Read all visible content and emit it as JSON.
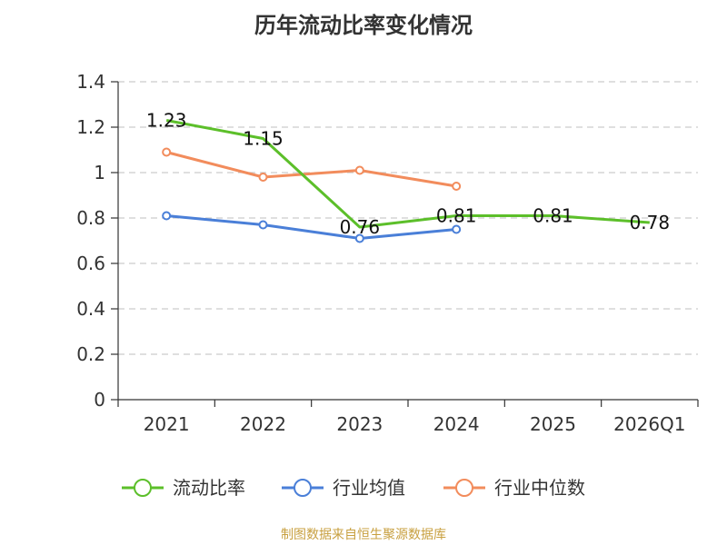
{
  "title": "历年流动比率变化情况",
  "source_note": "制图数据来自恒生聚源数据库",
  "chart_data": {
    "type": "line",
    "title": "历年流动比率变化情况",
    "categories": [
      "2021",
      "2022",
      "2023",
      "2024",
      "2025",
      "2026Q1"
    ],
    "ylim": [
      0,
      1.4
    ],
    "yticks": [
      0,
      0.2,
      0.4,
      0.6,
      0.8,
      1,
      1.2,
      1.4
    ],
    "grid": true,
    "legend_position": "bottom",
    "series": [
      {
        "name": "流动比率",
        "color": "#5cbf2a",
        "values": [
          1.23,
          1.15,
          0.76,
          0.81,
          0.81,
          0.78
        ],
        "labels": true,
        "markers": false
      },
      {
        "name": "行业均值",
        "color": "#4a7fd8",
        "values": [
          0.81,
          0.77,
          0.71,
          0.75,
          null,
          null
        ],
        "labels": false,
        "markers": true
      },
      {
        "name": "行业中位数",
        "color": "#f28c5c",
        "values": [
          1.09,
          0.98,
          1.01,
          0.94,
          null,
          null
        ],
        "labels": false,
        "markers": true
      }
    ]
  }
}
